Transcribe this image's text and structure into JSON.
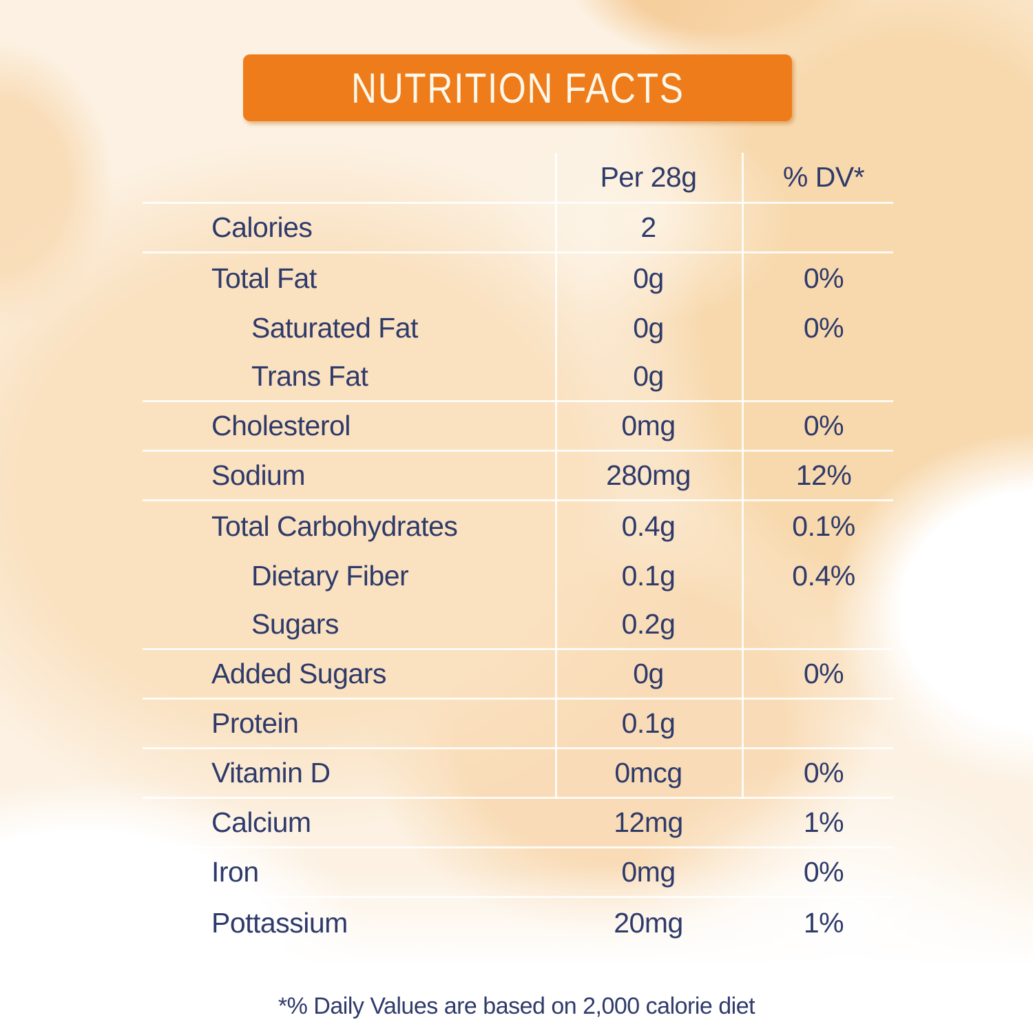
{
  "header": {
    "title": "NUTRITION FACTS"
  },
  "colors": {
    "banner_orange": "#ef7c1a",
    "banner_text": "#fdf8ec",
    "text_navy": "#2e3a6a",
    "divider_white": "rgba(255,255,255,0.85)",
    "background_peach": "#fae1c0"
  },
  "table": {
    "columns": {
      "amount": "Per 28g",
      "dv": "% DV*"
    },
    "rows": [
      {
        "label": "Calories",
        "amount": "2",
        "dv": "",
        "indent": false
      },
      {
        "label": "Total Fat",
        "amount": "0g",
        "dv": "0%",
        "indent": false
      },
      {
        "label": "Saturated Fat",
        "amount": "0g",
        "dv": "0%",
        "indent": true
      },
      {
        "label": "Trans Fat",
        "amount": "0g",
        "dv": "",
        "indent": true
      },
      {
        "label": "Cholesterol",
        "amount": "0mg",
        "dv": "0%",
        "indent": false
      },
      {
        "label": "Sodium",
        "amount": "280mg",
        "dv": "12%",
        "indent": false
      },
      {
        "label": "Total Carbohydrates",
        "amount": "0.4g",
        "dv": "0.1%",
        "indent": false
      },
      {
        "label": "Dietary Fiber",
        "amount": "0.1g",
        "dv": "0.4%",
        "indent": true
      },
      {
        "label": "Sugars",
        "amount": "0.2g",
        "dv": "",
        "indent": true
      },
      {
        "label": "Added Sugars",
        "amount": "0g",
        "dv": "0%",
        "indent": false
      },
      {
        "label": "Protein",
        "amount": "0.1g",
        "dv": "",
        "indent": false
      },
      {
        "label": "Vitamin D",
        "amount": "0mcg",
        "dv": "0%",
        "indent": false
      },
      {
        "label": "Calcium",
        "amount": "12mg",
        "dv": "1%",
        "indent": false
      },
      {
        "label": "Iron",
        "amount": "0mg",
        "dv": "0%",
        "indent": false
      },
      {
        "label": "Pottassium",
        "amount": "20mg",
        "dv": "1%",
        "indent": false
      }
    ]
  },
  "footer": {
    "note": "*% Daily Values are based on 2,000 calorie diet"
  }
}
